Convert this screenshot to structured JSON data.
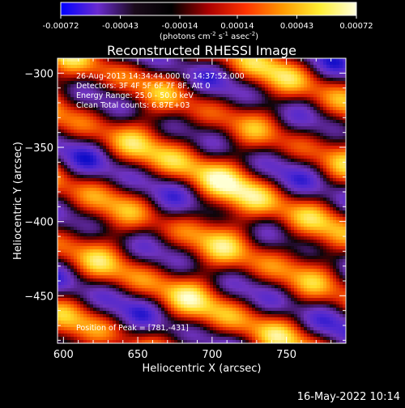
{
  "chart_data": {
    "type": "heatmap",
    "title": "Reconstructed RHESSI Image",
    "xlabel": "Heliocentric X (arcsec)",
    "ylabel": "Heliocentric Y (arcsec)",
    "xlim": [
      596,
      790
    ],
    "ylim": [
      -482,
      -290
    ],
    "xticks": [
      600,
      650,
      700,
      750
    ],
    "yticks": [
      -300,
      -350,
      -400,
      -450
    ],
    "colorbar": {
      "ticks": [
        "-0.00072",
        "-0.00043",
        "-0.00014",
        "0.00014",
        "0.00043",
        "0.00072"
      ],
      "tick_values": [
        -0.00072,
        -0.00043,
        -0.00014,
        0.00014,
        0.00043,
        0.00072
      ],
      "range": [
        -0.00072,
        0.00072
      ],
      "unit_label": "(photons cm-2 s-1 asec-2)",
      "unit_parts": [
        {
          "text": "(photons cm",
          "sup": false
        },
        {
          "text": "-2",
          "sup": true
        },
        {
          "text": " s",
          "sup": false
        },
        {
          "text": "-1",
          "sup": true
        },
        {
          "text": " asec",
          "sup": false
        },
        {
          "text": "-2",
          "sup": true
        },
        {
          "text": ")",
          "sup": false
        }
      ],
      "colors": [
        "#0000ff",
        "#6a2bd0",
        "#1a0a1a",
        "#000000",
        "#aa0000",
        "#ff3300",
        "#ff9900",
        "#ffee33",
        "#ffffdd"
      ]
    },
    "info_lines": [
      "26-Aug-2013 14:34:44.000 to 14:37:52.000",
      "Detectors: 3F 4F 5F 6F 7F 8F, Att 0",
      "Energy Range: 25.0 - 50.0 keV",
      "Clean     Total counts: 6.87E+03"
    ],
    "peak_text": "Position of Peak = [781,-431]",
    "peak": [
      781,
      -431
    ],
    "grid": false
  },
  "footer": {
    "date": "16-May-2022 10:14"
  }
}
